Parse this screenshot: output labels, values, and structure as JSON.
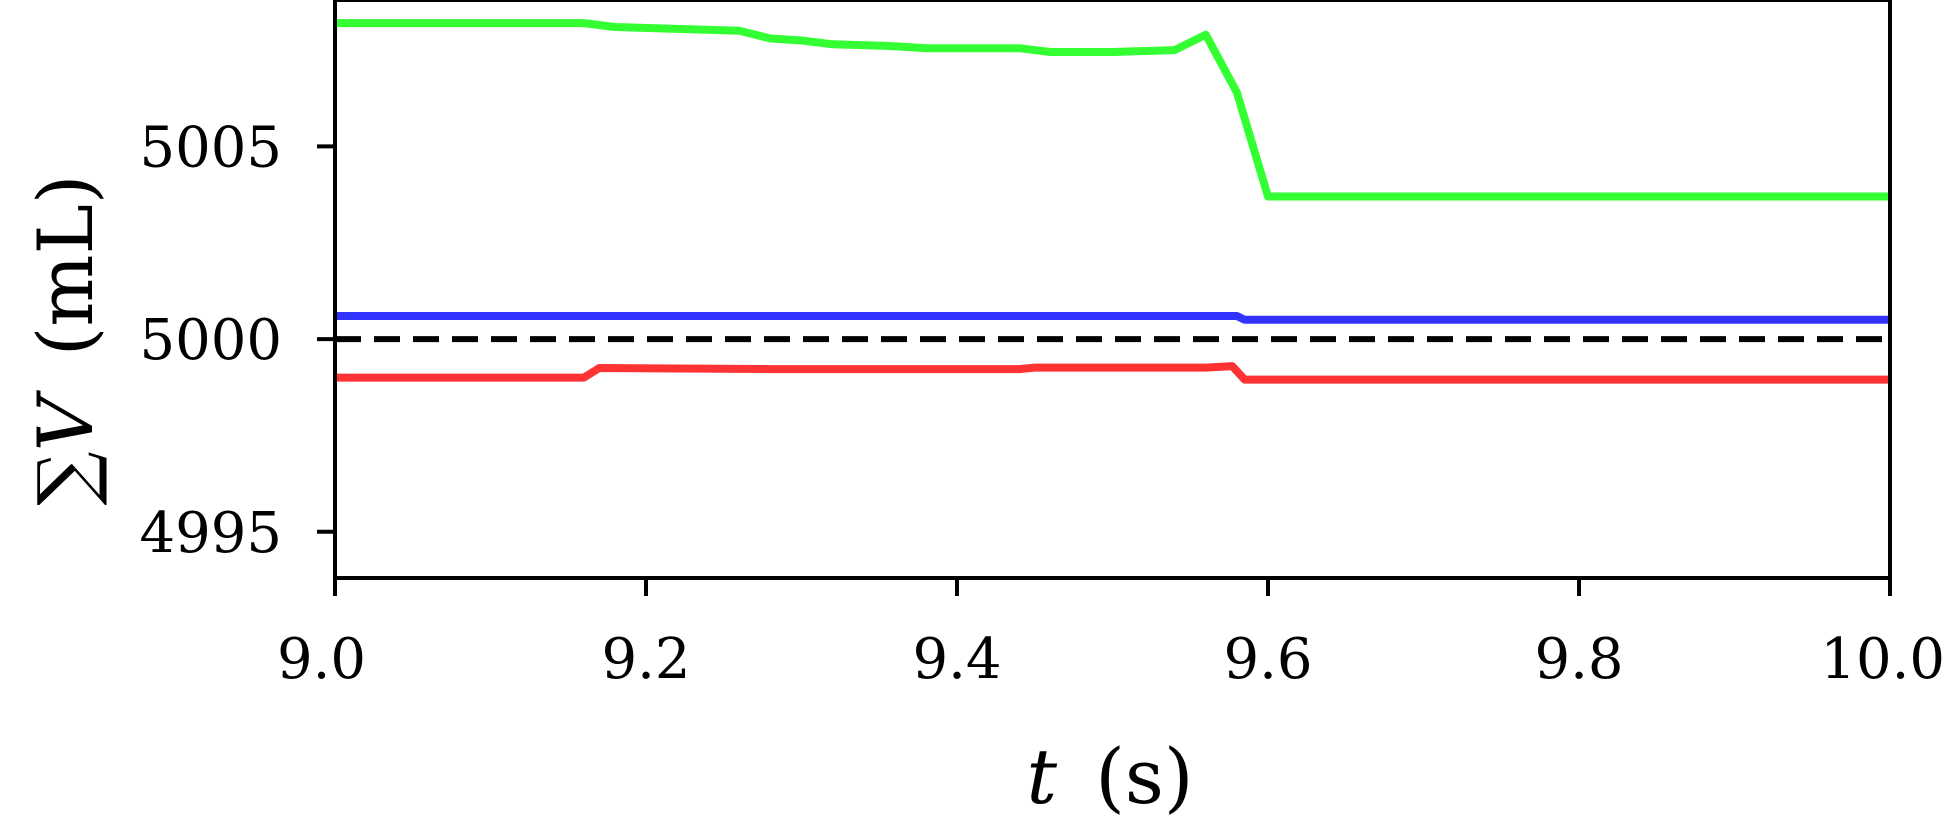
{
  "chart_data": {
    "type": "line",
    "title": "",
    "xlabel": {
      "symbol": "t",
      "unit": "(s)"
    },
    "ylabel": {
      "symbol": "∑V",
      "unit": "(mL)"
    },
    "xlim": [
      9.0,
      10.0
    ],
    "ylim": [
      4993.8,
      5008.8
    ],
    "xticks": [
      9.0,
      9.2,
      9.4,
      9.6,
      9.8,
      10.0
    ],
    "xtick_labels": [
      "9.0",
      "9.2",
      "9.4",
      "9.6",
      "9.8",
      "10.0"
    ],
    "yticks": [
      4995,
      5000,
      5005
    ],
    "ytick_labels": [
      "4995",
      "5000",
      "5005"
    ],
    "grid": false,
    "reference_line": {
      "y": 5000,
      "style": "dashed",
      "color": "#000000"
    },
    "series": [
      {
        "color": "#33ff33",
        "x": [
          9.0,
          9.16,
          9.18,
          9.26,
          9.28,
          9.3,
          9.32,
          9.36,
          9.38,
          9.44,
          9.46,
          9.5,
          9.54,
          9.56,
          9.58,
          9.6,
          10.0
        ],
        "y": [
          5008.2,
          5008.2,
          5008.1,
          5008.0,
          5007.8,
          5007.75,
          5007.65,
          5007.6,
          5007.55,
          5007.55,
          5007.45,
          5007.45,
          5007.5,
          5007.9,
          5006.4,
          5003.7,
          5003.7
        ]
      },
      {
        "color": "#3333ff",
        "x": [
          9.0,
          9.58,
          9.585,
          10.0
        ],
        "y": [
          5000.6,
          5000.6,
          5000.5,
          5000.5
        ]
      },
      {
        "color": "#ff3333",
        "x": [
          9.0,
          9.16,
          9.17,
          9.28,
          9.44,
          9.45,
          9.56,
          9.577,
          9.585,
          10.0
        ],
        "y": [
          4999.0,
          4999.0,
          4999.25,
          4999.22,
          4999.22,
          4999.26,
          4999.26,
          4999.3,
          4998.95,
          4998.95
        ]
      }
    ]
  }
}
